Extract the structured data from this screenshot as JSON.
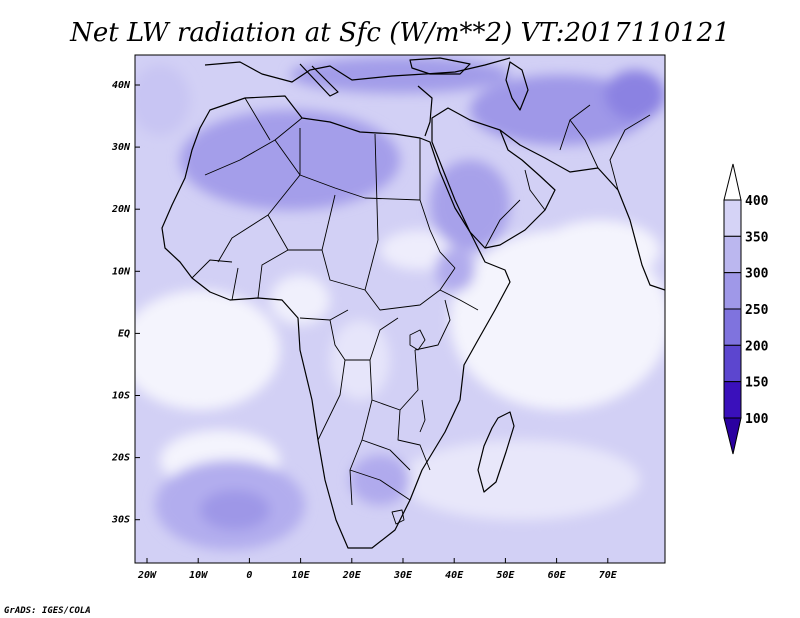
{
  "title": "Net LW radiation at Sfc (W/m**2) VT:2017110121",
  "credit": "GrADS: IGES/COLA",
  "map": {
    "lon_labels": [
      "20W",
      "10W",
      "0",
      "10E",
      "20E",
      "30E",
      "40E",
      "50E",
      "60E",
      "70E"
    ],
    "lat_labels": [
      "40N",
      "30N",
      "20N",
      "10N",
      "EQ",
      "10S",
      "20S",
      "30S"
    ]
  },
  "colorbar": {
    "labels": [
      "400",
      "350",
      "300",
      "250",
      "200",
      "150",
      "100"
    ],
    "colors": [
      "#ecebfb",
      "#d5d3f6",
      "#bbb7ef",
      "#9f98e8",
      "#7f73de",
      "#5c46cf",
      "#3a10bb",
      "#2a00a0"
    ]
  }
}
